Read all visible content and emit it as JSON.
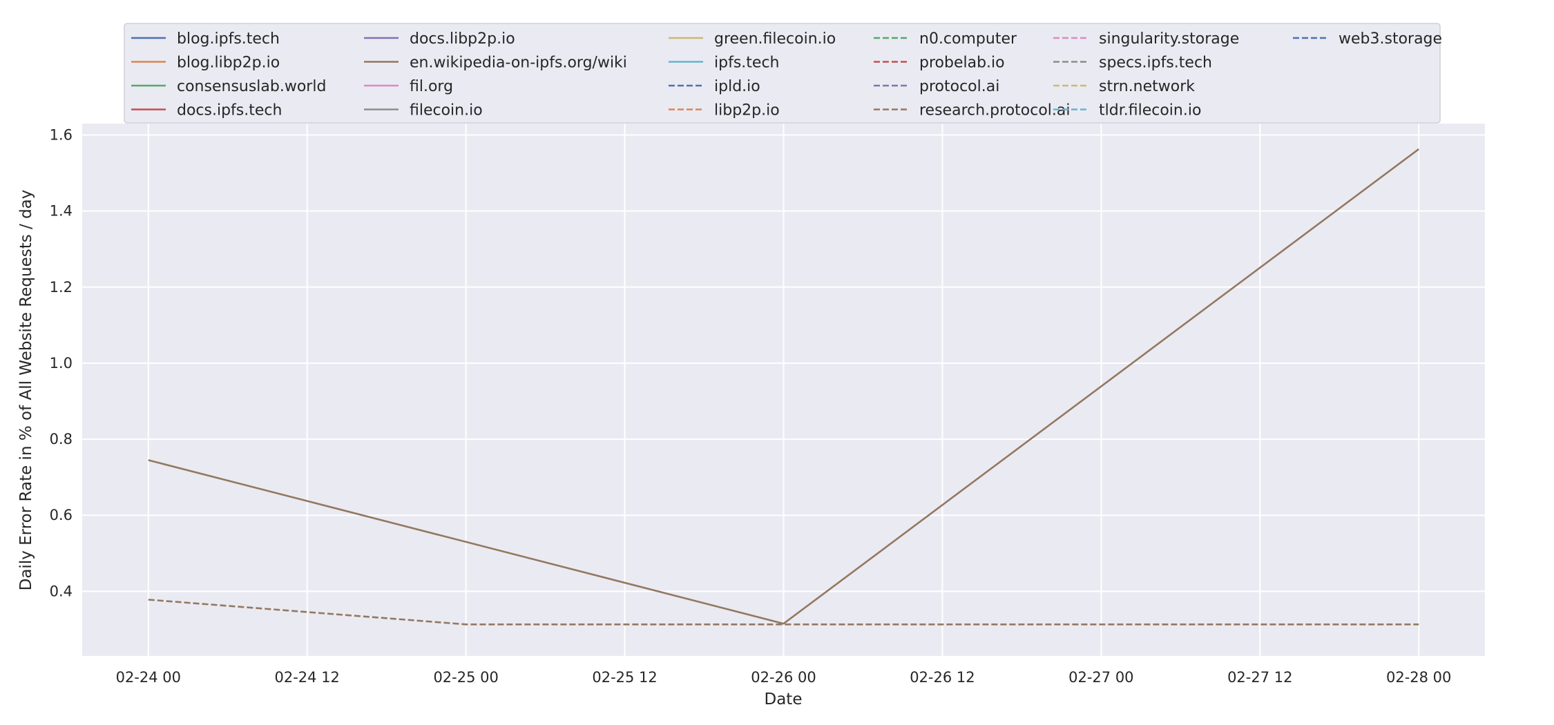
{
  "chart_data": {
    "type": "line",
    "xlabel": "Date",
    "ylabel": "Daily Error Rate in % of All Website Requests / day",
    "x_ticks": [
      "02-24 00",
      "02-24 12",
      "02-25 00",
      "02-25 12",
      "02-26 00",
      "02-26 12",
      "02-27 00",
      "02-27 12",
      "02-28 00"
    ],
    "y_ticks": [
      "0.4",
      "0.6",
      "0.8",
      "1.0",
      "1.2",
      "1.4",
      "1.6"
    ],
    "xlim": [
      "2023-02-23 19:00",
      "2023-02-28 05:00"
    ],
    "ylim": [
      0.23,
      1.63
    ],
    "grid": true,
    "legend_placement": "top-center",
    "legend_columns": 6,
    "series": [
      {
        "name": "blog.ipfs.tech",
        "color": "#4c72b0",
        "dash": "solid",
        "x": [],
        "y": []
      },
      {
        "name": "blog.libp2p.io",
        "color": "#dd8452",
        "dash": "solid",
        "x": [],
        "y": []
      },
      {
        "name": "consensuslab.world",
        "color": "#55a868",
        "dash": "solid",
        "x": [],
        "y": []
      },
      {
        "name": "docs.ipfs.tech",
        "color": "#c44e52",
        "dash": "solid",
        "x": [],
        "y": []
      },
      {
        "name": "docs.libp2p.io",
        "color": "#8172b3",
        "dash": "solid",
        "x": [],
        "y": []
      },
      {
        "name": "en.wikipedia-on-ipfs.org/wiki",
        "color": "#937860",
        "dash": "solid",
        "x": [
          "2023-02-24 00:00",
          "2023-02-26 00:00",
          "2023-02-28 00:00"
        ],
        "y": [
          0.745,
          0.315,
          1.563
        ]
      },
      {
        "name": "fil.org",
        "color": "#da8bc3",
        "dash": "solid",
        "x": [],
        "y": []
      },
      {
        "name": "filecoin.io",
        "color": "#8c8c8c",
        "dash": "solid",
        "x": [],
        "y": []
      },
      {
        "name": "green.filecoin.io",
        "color": "#ccb974",
        "dash": "solid",
        "x": [],
        "y": []
      },
      {
        "name": "ipfs.tech",
        "color": "#64b5cd",
        "dash": "solid",
        "x": [],
        "y": []
      },
      {
        "name": "ipld.io",
        "color": "#4c72b0",
        "dash": "dashed",
        "x": [],
        "y": []
      },
      {
        "name": "libp2p.io",
        "color": "#dd8452",
        "dash": "dashed",
        "x": [],
        "y": []
      },
      {
        "name": "n0.computer",
        "color": "#55a868",
        "dash": "dashed",
        "x": [],
        "y": []
      },
      {
        "name": "probelab.io",
        "color": "#c44e52",
        "dash": "dashed",
        "x": [],
        "y": []
      },
      {
        "name": "protocol.ai",
        "color": "#8172b3",
        "dash": "dashed",
        "x": [],
        "y": []
      },
      {
        "name": "research.protocol.ai",
        "color": "#937860",
        "dash": "dashed",
        "x": [
          "2023-02-24 00:00",
          "2023-02-25 00:00",
          "2023-02-26 00:00",
          "2023-02-27 00:00",
          "2023-02-28 00:00"
        ],
        "y": [
          0.378,
          0.313,
          0.313,
          0.313,
          0.313
        ]
      },
      {
        "name": "singularity.storage",
        "color": "#da8bc3",
        "dash": "dashed",
        "x": [],
        "y": []
      },
      {
        "name": "specs.ipfs.tech",
        "color": "#8c8c8c",
        "dash": "dashed",
        "x": [],
        "y": []
      },
      {
        "name": "strn.network",
        "color": "#ccb974",
        "dash": "dashed",
        "x": [],
        "y": []
      },
      {
        "name": "tldr.filecoin.io",
        "color": "#64b5cd",
        "dash": "dashed",
        "x": [],
        "y": []
      },
      {
        "name": "web3.storage",
        "color": "#4c72b0",
        "dash": "dashed",
        "x": [],
        "y": []
      }
    ]
  }
}
